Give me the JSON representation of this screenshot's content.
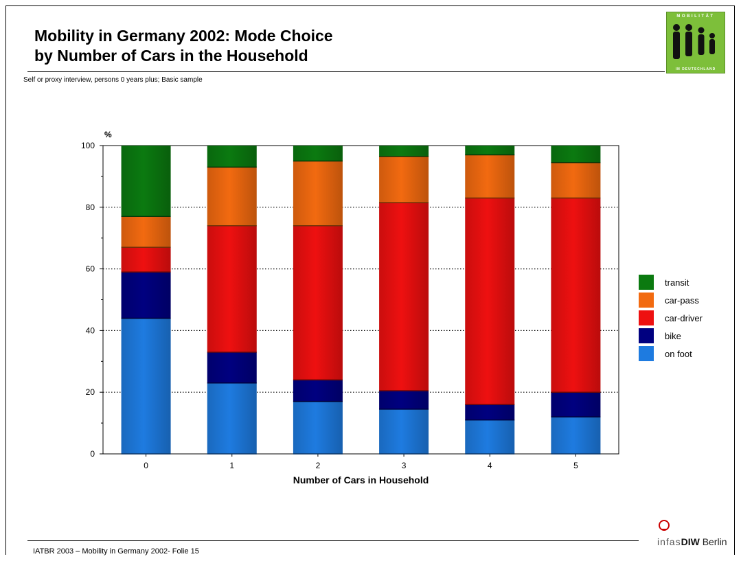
{
  "page": {
    "title_line1": "Mobility in Germany 2002: Mode Choice",
    "title_line2": "by Number of Cars in the Household",
    "subtitle": "Self or proxy interview, persons 0 years plus; Basic sample",
    "footer": "IATBR 2003 – Mobility in Germany 2002- Folie 15",
    "logo_top": "MOBILITÄT",
    "logo_bottom": "IN DEUTSCHLAND",
    "brand": {
      "infas": "infas",
      "diw": "DIW",
      "city": "Berlin"
    }
  },
  "chart_data": {
    "type": "bar",
    "stacked": true,
    "title": "",
    "xlabel": "Number of Cars in Household",
    "ylabel": "%",
    "ylim": [
      0,
      100
    ],
    "yticks": [
      0,
      20,
      40,
      60,
      80,
      100
    ],
    "categories": [
      "0",
      "1",
      "2",
      "3",
      "4",
      "5"
    ],
    "grid": "horizontal dotted at 20, 40, 60, 80",
    "legend_position": "right",
    "series": [
      {
        "name": "on foot",
        "color": "#1e7be0",
        "values": [
          44,
          23,
          17,
          14.5,
          11,
          12
        ]
      },
      {
        "name": "bike",
        "color": "#000080",
        "values": [
          15,
          10,
          7,
          6,
          5,
          8
        ]
      },
      {
        "name": "car-driver",
        "color": "#ee1010",
        "values": [
          8,
          41,
          50,
          61,
          67,
          63
        ]
      },
      {
        "name": "car-pass",
        "color": "#f26a10",
        "values": [
          10,
          19,
          21,
          15,
          14,
          11.5
        ]
      },
      {
        "name": "transit",
        "color": "#0b7a10",
        "values": [
          23,
          7,
          5,
          3.5,
          3,
          5.5
        ]
      }
    ]
  }
}
